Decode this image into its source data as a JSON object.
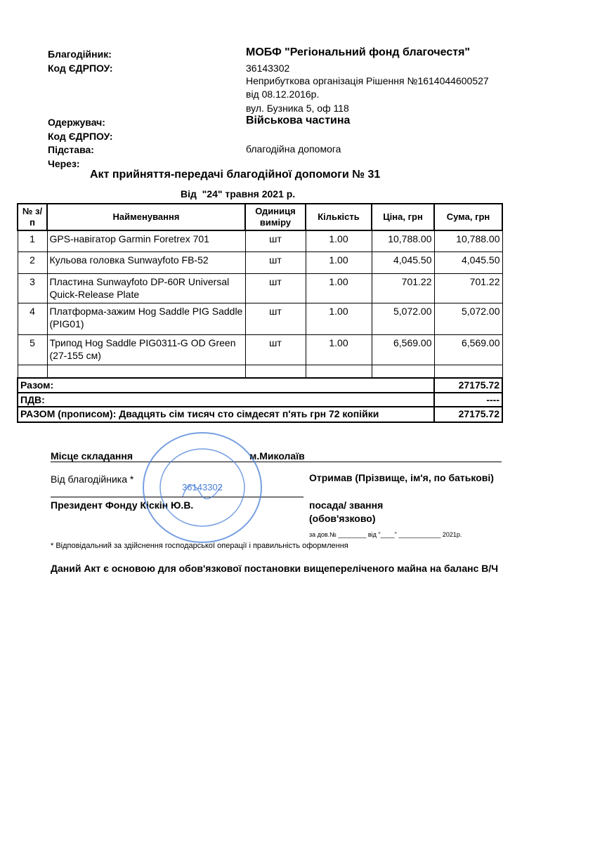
{
  "header": {
    "donor_label": "Благодійник:",
    "donor": "МОБФ \"Регіональний фонд благочестя\"",
    "code_label": "Код ЄДРПОУ:",
    "code": "36143302",
    "org_lines": [
      "Неприбуткова організація Рішення №1614044600527",
      "від 08.12.2016р.",
      "вул. Бузника 5, оф 118"
    ],
    "recipient_label": "Одержувач:",
    "recipient": "Військова частина",
    "recipient_code_label": "Код ЄДРПОУ:",
    "basis_label": "Підстава:",
    "basis": "благодійна допомога",
    "via_label": "Через:"
  },
  "title": "Акт прийняття-передачі благодійної допомоги № 31",
  "date": "Від  \"24\" травня 2021 р.",
  "table": {
    "columns": [
      "№ з/п",
      "Найменування",
      "Одиниця виміру",
      "Кількість",
      "Ціна, грн",
      "Сума, грн"
    ],
    "rows": [
      [
        "1",
        "GPS-навігатор Garmin Foretrex 701",
        "шт",
        "1.00",
        "10,788.00",
        "10,788.00"
      ],
      [
        "2",
        "Кульова головка Sunwayfoto FB-52",
        "шт",
        "1.00",
        "4,045.50",
        "4,045.50"
      ],
      [
        "3",
        "Пластина Sunwayfoto DP-60R Universal Quick-Release Plate",
        "шт",
        "1.00",
        "701.22",
        "701.22"
      ],
      [
        "4",
        "Платформа-зажим Hog Saddle PIG Saddle (PIG01)",
        "шт",
        "1.00",
        "5,072.00",
        "5,072.00"
      ],
      [
        "5",
        "Трипод Hog Saddle PIG0311-G OD Green (27-155 см)",
        "шт",
        "1.00",
        "6,569.00",
        "6,569.00"
      ]
    ],
    "total_label": "Разом:",
    "total": "27175.72",
    "vat_label": "ПДВ:",
    "vat": "----",
    "words": "РАЗОМ (прописом): Двадцять сім тисяч сто сімдесят п'ять грн 72 копійки",
    "words_total": "27175.72"
  },
  "signatures": {
    "place_label": "Місце складання",
    "place": "м.Миколаїв",
    "from_donor": "Від благодійника *",
    "received": "Отримав  (Прізвище, ім'я, по батькові)",
    "president": "Президент Фонду Кіскін Ю.В.",
    "position": "посада/ звання",
    "mandatory": "(обов'язково)",
    "proxy": "за дов.№ ________ від \"____\" ____________ 2021р."
  },
  "stamp": {
    "code": "36143302"
  },
  "footnote": "* Відповідальний за здійснення господарської операції і правильність оформлення",
  "conclusion": "Даний Акт є основою для обов'язкової постановки вищепереліченого майна на баланс В/Ч"
}
